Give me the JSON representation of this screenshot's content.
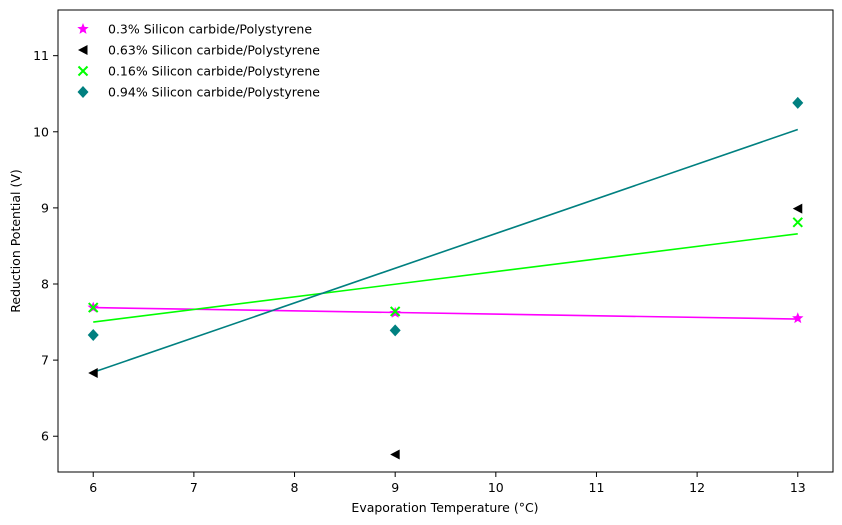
{
  "chart_data": {
    "type": "scatter",
    "title": "",
    "xlabel": "Evaporation Temperature (°C)",
    "ylabel": "Reduction Potential (V)",
    "xlim": [
      5.65,
      13.35
    ],
    "ylim": [
      5.53,
      11.6
    ],
    "xticks": [
      6,
      7,
      8,
      9,
      10,
      11,
      12,
      13
    ],
    "yticks": [
      6,
      7,
      8,
      9,
      10,
      11
    ],
    "grid": false,
    "legend_position": "top-left",
    "series": [
      {
        "name": "0.3% Silicon carbide/Polystyrene",
        "color": "#ff00ff",
        "marker": "star",
        "points": [
          [
            6,
            7.69
          ],
          [
            9,
            7.62
          ],
          [
            13,
            7.55
          ]
        ],
        "fit": [
          [
            6,
            7.69
          ],
          [
            13,
            7.54
          ]
        ]
      },
      {
        "name": "0.63% Silicon carbide/Polystyrene",
        "color": "#000000",
        "marker": "triangle-left",
        "points": [
          [
            6,
            6.83
          ],
          [
            9,
            5.76
          ],
          [
            13,
            8.99
          ]
        ],
        "fit": null
      },
      {
        "name": "0.16% Silicon carbide/Polystyrene",
        "color": "#00ff00",
        "marker": "x",
        "points": [
          [
            6,
            7.69
          ],
          [
            9,
            7.64
          ],
          [
            13,
            8.81
          ]
        ],
        "fit": [
          [
            6,
            7.5
          ],
          [
            13,
            8.66
          ]
        ]
      },
      {
        "name": "0.94% Silicon carbide/Polystyrene",
        "color": "#008080",
        "marker": "diamond",
        "points": [
          [
            6,
            7.33
          ],
          [
            9,
            7.39
          ],
          [
            13,
            10.38
          ]
        ],
        "fit": [
          [
            6,
            6.84
          ],
          [
            13,
            10.03
          ]
        ]
      }
    ]
  }
}
